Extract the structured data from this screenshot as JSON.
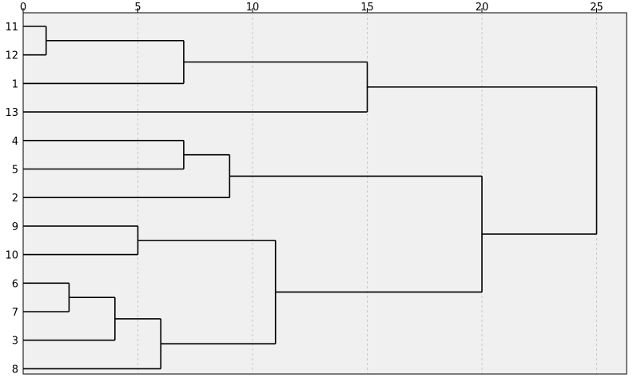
{
  "chart_data": {
    "type": "dendrogram",
    "orientation": "horizontal",
    "title": "",
    "xlabel": "",
    "ylabel": "",
    "xlim": [
      0,
      26
    ],
    "x_ticks": [
      0,
      5,
      10,
      15,
      20,
      25
    ],
    "grid": "vertical dashed at ticks",
    "leaves": [
      "11",
      "12",
      "1",
      "13",
      "4",
      "5",
      "2",
      "9",
      "10",
      "6",
      "7",
      "3",
      "8"
    ],
    "merges": [
      {
        "id": "A",
        "a": "11",
        "b": "12",
        "height": 1
      },
      {
        "id": "B",
        "a": "A",
        "b": "1",
        "height": 7
      },
      {
        "id": "C",
        "a": "B",
        "b": "13",
        "height": 15
      },
      {
        "id": "D",
        "a": "4",
        "b": "5",
        "height": 7
      },
      {
        "id": "E",
        "a": "D",
        "b": "2",
        "height": 9
      },
      {
        "id": "F",
        "a": "9",
        "b": "10",
        "height": 5
      },
      {
        "id": "G",
        "a": "6",
        "b": "7",
        "height": 2
      },
      {
        "id": "H",
        "a": "G",
        "b": "3",
        "height": 4
      },
      {
        "id": "I",
        "a": "H",
        "b": "8",
        "height": 6
      },
      {
        "id": "J",
        "a": "F",
        "b": "I",
        "height": 11
      },
      {
        "id": "K",
        "a": "E",
        "b": "J",
        "height": 20
      },
      {
        "id": "L",
        "a": "C",
        "b": "K",
        "height": 25
      }
    ],
    "colors": {
      "plot_background": "#f0f0f0",
      "line": "#000000",
      "grid": "#c8c8c8"
    }
  }
}
